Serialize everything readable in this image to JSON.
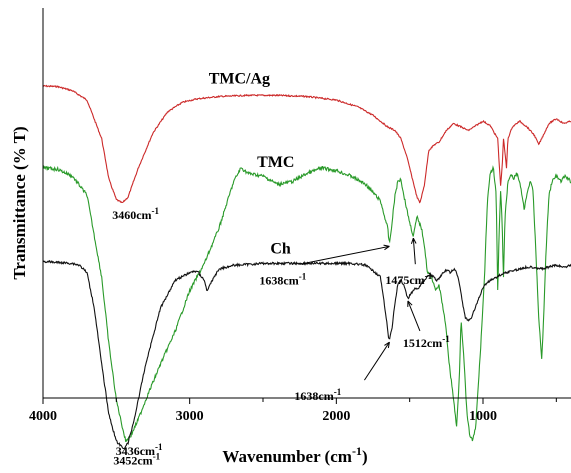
{
  "chart_data": {
    "type": "line",
    "title": "",
    "xlabel": "Wavenumber (cm",
    "xlabel_sup": "-1",
    "xlabel_close": ")",
    "ylabel": "Transmittance (% T)",
    "xlim": [
      4000,
      400
    ],
    "x_reversed": true,
    "xticks": [
      "4000",
      "3000",
      "2000",
      "1000"
    ],
    "yticks_shown": false,
    "grid": false,
    "legend": "none",
    "series": [
      {
        "name": "TMC/Ag",
        "color": "#cc2a2a",
        "offset": 0.8,
        "depth": 0.3,
        "points": [
          [
            4000,
            0.0
          ],
          [
            3900,
            0.005
          ],
          [
            3800,
            0.04
          ],
          [
            3700,
            0.12
          ],
          [
            3600,
            0.45
          ],
          [
            3550,
            0.8
          ],
          [
            3500,
            0.97
          ],
          [
            3460,
            1.0
          ],
          [
            3420,
            0.95
          ],
          [
            3350,
            0.7
          ],
          [
            3250,
            0.4
          ],
          [
            3150,
            0.22
          ],
          [
            3050,
            0.14
          ],
          [
            2950,
            0.11
          ],
          [
            2800,
            0.09
          ],
          [
            2600,
            0.08
          ],
          [
            2400,
            0.08
          ],
          [
            2200,
            0.09
          ],
          [
            2000,
            0.12
          ],
          [
            1850,
            0.18
          ],
          [
            1750,
            0.25
          ],
          [
            1650,
            0.35
          ],
          [
            1600,
            0.38
          ],
          [
            1560,
            0.45
          ],
          [
            1520,
            0.6
          ],
          [
            1480,
            0.8
          ],
          [
            1450,
            0.95
          ],
          [
            1430,
            1.0
          ],
          [
            1400,
            0.85
          ],
          [
            1370,
            0.55
          ],
          [
            1330,
            0.5
          ],
          [
            1300,
            0.48
          ],
          [
            1250,
            0.38
          ],
          [
            1200,
            0.32
          ],
          [
            1150,
            0.35
          ],
          [
            1100,
            0.38
          ],
          [
            1050,
            0.34
          ],
          [
            1000,
            0.3
          ],
          [
            950,
            0.34
          ],
          [
            900,
            0.45
          ],
          [
            880,
            0.85
          ],
          [
            870,
            0.7
          ],
          [
            860,
            0.45
          ],
          [
            840,
            0.7
          ],
          [
            830,
            0.45
          ],
          [
            800,
            0.35
          ],
          [
            750,
            0.3
          ],
          [
            700,
            0.35
          ],
          [
            650,
            0.42
          ],
          [
            620,
            0.5
          ],
          [
            600,
            0.45
          ],
          [
            550,
            0.32
          ],
          [
            500,
            0.28
          ],
          [
            450,
            0.32
          ],
          [
            400,
            0.3
          ]
        ]
      },
      {
        "name": "TMC",
        "color": "#2a9a2a",
        "offset": 0.59,
        "depth": 0.7,
        "points": [
          [
            4000,
            0.0
          ],
          [
            3900,
            0.005
          ],
          [
            3800,
            0.03
          ],
          [
            3700,
            0.1
          ],
          [
            3600,
            0.4
          ],
          [
            3550,
            0.65
          ],
          [
            3500,
            0.85
          ],
          [
            3450,
            0.97
          ],
          [
            3436,
            1.0
          ],
          [
            3400,
            0.98
          ],
          [
            3350,
            0.92
          ],
          [
            3300,
            0.85
          ],
          [
            3200,
            0.72
          ],
          [
            3100,
            0.6
          ],
          [
            3000,
            0.45
          ],
          [
            2900,
            0.35
          ],
          [
            2800,
            0.22
          ],
          [
            2700,
            0.05
          ],
          [
            2650,
            0.0
          ],
          [
            2600,
            0.02
          ],
          [
            2500,
            0.03
          ],
          [
            2400,
            0.06
          ],
          [
            2300,
            0.05
          ],
          [
            2200,
            0.02
          ],
          [
            2100,
            0.0
          ],
          [
            2000,
            0.01
          ],
          [
            1900,
            0.03
          ],
          [
            1800,
            0.06
          ],
          [
            1700,
            0.12
          ],
          [
            1650,
            0.22
          ],
          [
            1638,
            0.28
          ],
          [
            1620,
            0.2
          ],
          [
            1600,
            0.1
          ],
          [
            1580,
            0.05
          ],
          [
            1560,
            0.04
          ],
          [
            1540,
            0.1
          ],
          [
            1520,
            0.15
          ],
          [
            1500,
            0.2
          ],
          [
            1475,
            0.25
          ],
          [
            1450,
            0.18
          ],
          [
            1420,
            0.22
          ],
          [
            1400,
            0.28
          ],
          [
            1380,
            0.38
          ],
          [
            1350,
            0.4
          ],
          [
            1320,
            0.45
          ],
          [
            1300,
            0.43
          ],
          [
            1270,
            0.52
          ],
          [
            1250,
            0.6
          ],
          [
            1230,
            0.72
          ],
          [
            1200,
            0.85
          ],
          [
            1180,
            0.95
          ],
          [
            1160,
            0.75
          ],
          [
            1150,
            0.55
          ],
          [
            1130,
            0.7
          ],
          [
            1110,
            0.9
          ],
          [
            1090,
            0.98
          ],
          [
            1070,
            1.0
          ],
          [
            1050,
            0.95
          ],
          [
            1030,
            0.78
          ],
          [
            1010,
            0.6
          ],
          [
            990,
            0.4
          ],
          [
            970,
            0.12
          ],
          [
            950,
            0.02
          ],
          [
            930,
            0.0
          ],
          [
            910,
            0.1
          ],
          [
            900,
            0.45
          ],
          [
            890,
            0.25
          ],
          [
            880,
            0.08
          ],
          [
            870,
            0.2
          ],
          [
            860,
            0.4
          ],
          [
            850,
            0.18
          ],
          [
            830,
            0.05
          ],
          [
            810,
            0.02
          ],
          [
            790,
            0.04
          ],
          [
            770,
            0.02
          ],
          [
            750,
            0.05
          ],
          [
            720,
            0.15
          ],
          [
            700,
            0.1
          ],
          [
            680,
            0.05
          ],
          [
            660,
            0.08
          ],
          [
            640,
            0.3
          ],
          [
            620,
            0.55
          ],
          [
            600,
            0.7
          ],
          [
            590,
            0.6
          ],
          [
            570,
            0.3
          ],
          [
            550,
            0.1
          ],
          [
            530,
            0.05
          ],
          [
            500,
            0.03
          ],
          [
            470,
            0.05
          ],
          [
            440,
            0.03
          ],
          [
            400,
            0.05
          ]
        ]
      },
      {
        "name": "Ch",
        "color": "#111111",
        "offset": 0.35,
        "depth": 0.48,
        "points": [
          [
            4000,
            0.0
          ],
          [
            3900,
            0.005
          ],
          [
            3800,
            0.01
          ],
          [
            3750,
            0.02
          ],
          [
            3700,
            0.06
          ],
          [
            3650,
            0.25
          ],
          [
            3600,
            0.55
          ],
          [
            3550,
            0.82
          ],
          [
            3500,
            0.96
          ],
          [
            3452,
            1.0
          ],
          [
            3420,
            0.97
          ],
          [
            3380,
            0.85
          ],
          [
            3300,
            0.55
          ],
          [
            3200,
            0.25
          ],
          [
            3100,
            0.1
          ],
          [
            3000,
            0.06
          ],
          [
            2950,
            0.05
          ],
          [
            2900,
            0.1
          ],
          [
            2880,
            0.16
          ],
          [
            2860,
            0.12
          ],
          [
            2800,
            0.04
          ],
          [
            2700,
            0.02
          ],
          [
            2500,
            0.01
          ],
          [
            2300,
            0.01
          ],
          [
            2100,
            0.01
          ],
          [
            1900,
            0.01
          ],
          [
            1800,
            0.02
          ],
          [
            1700,
            0.08
          ],
          [
            1660,
            0.3
          ],
          [
            1645,
            0.4
          ],
          [
            1638,
            0.42
          ],
          [
            1620,
            0.35
          ],
          [
            1600,
            0.22
          ],
          [
            1580,
            0.12
          ],
          [
            1560,
            0.1
          ],
          [
            1540,
            0.13
          ],
          [
            1520,
            0.18
          ],
          [
            1512,
            0.2
          ],
          [
            1500,
            0.18
          ],
          [
            1470,
            0.15
          ],
          [
            1440,
            0.14
          ],
          [
            1420,
            0.12
          ],
          [
            1400,
            0.1
          ],
          [
            1380,
            0.08
          ],
          [
            1360,
            0.07
          ],
          [
            1340,
            0.08
          ],
          [
            1320,
            0.1
          ],
          [
            1300,
            0.09
          ],
          [
            1280,
            0.07
          ],
          [
            1260,
            0.05
          ],
          [
            1240,
            0.05
          ],
          [
            1220,
            0.06
          ],
          [
            1200,
            0.04
          ],
          [
            1180,
            0.06
          ],
          [
            1160,
            0.12
          ],
          [
            1140,
            0.22
          ],
          [
            1120,
            0.3
          ],
          [
            1100,
            0.32
          ],
          [
            1080,
            0.3
          ],
          [
            1060,
            0.26
          ],
          [
            1040,
            0.22
          ],
          [
            1020,
            0.18
          ],
          [
            1000,
            0.14
          ],
          [
            980,
            0.12
          ],
          [
            950,
            0.1
          ],
          [
            900,
            0.08
          ],
          [
            850,
            0.06
          ],
          [
            800,
            0.05
          ],
          [
            750,
            0.04
          ],
          [
            700,
            0.03
          ],
          [
            650,
            0.03
          ],
          [
            600,
            0.04
          ],
          [
            550,
            0.03
          ],
          [
            500,
            0.02
          ],
          [
            450,
            0.03
          ],
          [
            400,
            0.02
          ]
        ]
      }
    ],
    "annotations": [
      {
        "series": "TMC/Ag",
        "text": "3460cm",
        "sup": "-1",
        "x": 3460,
        "arrow": false
      },
      {
        "series": "TMC",
        "text": "3436cm",
        "sup": "-1",
        "x": 3436,
        "arrow": false
      },
      {
        "series": "TMC",
        "text": "1638cm",
        "sup": "-1",
        "x": 1638,
        "arrow": true
      },
      {
        "series": "TMC",
        "text": "1475cm",
        "sup": "-1",
        "x": 1475,
        "arrow": true
      },
      {
        "series": "Ch",
        "text": "3452cm",
        "sup": "-1",
        "x": 3452,
        "arrow": false
      },
      {
        "series": "Ch",
        "text": "1638cm",
        "sup": "-1",
        "x": 1638,
        "arrow": true
      },
      {
        "series": "Ch",
        "text": "1512cm",
        "sup": "-1",
        "x": 1512,
        "arrow": true
      }
    ]
  }
}
